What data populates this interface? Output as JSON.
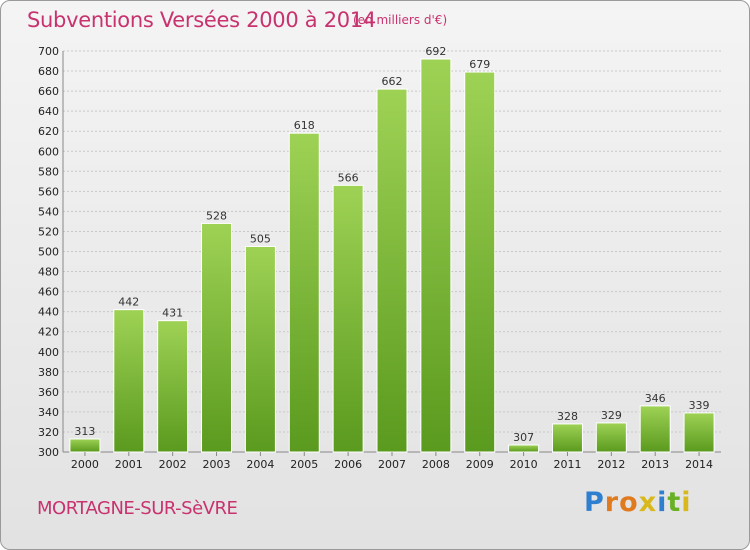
{
  "chart": {
    "title": "Subventions Versées 2000 à 2014",
    "unit_note": "(en milliers d'€)",
    "commune": "MORTAGNE-SUR-SèVRE",
    "logo_text": "Proxiti"
  },
  "colors": {
    "title": "#c8326e",
    "bar_top": "#9ed255",
    "bar_bottom": "#5a9a1e",
    "grid": "#c8c8c8"
  },
  "chart_data": {
    "type": "bar",
    "title": "Subventions Versées 2000 à 2014",
    "subtitle": "(en milliers d'€)",
    "xlabel": "",
    "ylabel": "",
    "categories": [
      "2000",
      "2001",
      "2002",
      "2003",
      "2004",
      "2005",
      "2006",
      "2007",
      "2008",
      "2009",
      "2010",
      "2011",
      "2012",
      "2013",
      "2014"
    ],
    "values": [
      313,
      442,
      431,
      528,
      505,
      618,
      566,
      662,
      692,
      679,
      307,
      328,
      329,
      346,
      339
    ],
    "ylim": [
      300,
      700
    ],
    "ytick_step": 20,
    "grid": true,
    "legend": "none"
  }
}
